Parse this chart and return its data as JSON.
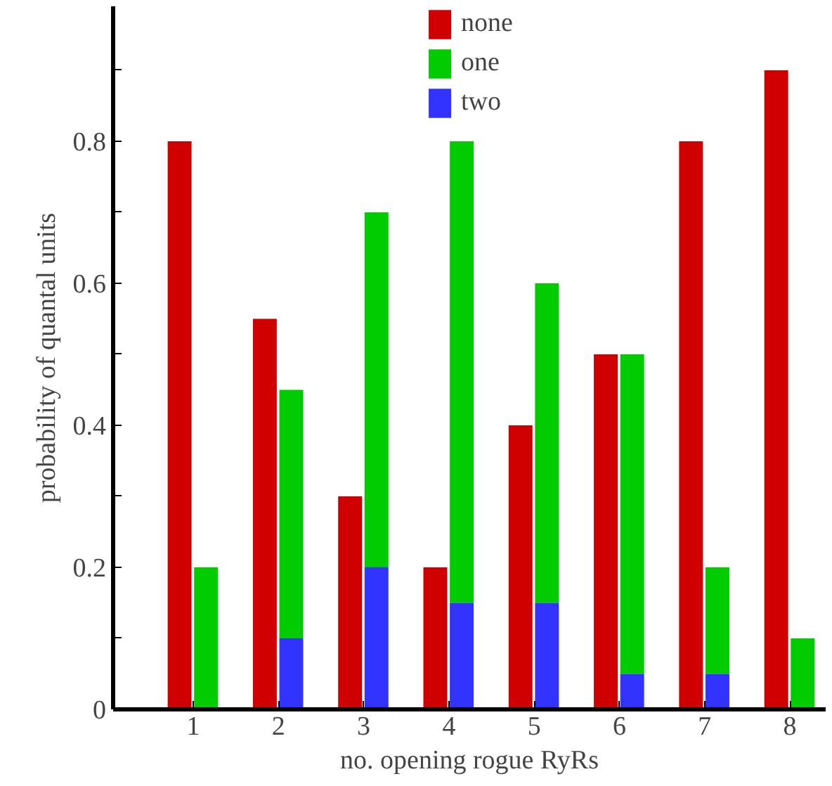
{
  "chart_data": {
    "type": "bar",
    "xlabel": "no. opening rogue RyRs",
    "ylabel": "probability of quantal units",
    "series": [
      {
        "name": "none",
        "color": "#d00000",
        "x": [
          0.84,
          1.84,
          2.84,
          3.84,
          4.84,
          5.84,
          6.84,
          7.84
        ],
        "values": [
          0.8,
          0.55,
          0.3,
          0.2,
          0.4,
          0.5,
          0.8,
          0.9
        ]
      },
      {
        "name": "one",
        "color": "#00cc00",
        "x": [
          1.15,
          2.15,
          3.15,
          4.15,
          5.15,
          6.15,
          7.15,
          8.15
        ],
        "values": [
          0.2,
          0.35,
          0.5,
          0.65,
          0.45,
          0.45,
          0.15,
          0.1
        ],
        "base": [
          0,
          0.1,
          0.2,
          0.15,
          0.15,
          0.05,
          0.05,
          0
        ]
      },
      {
        "name": "two",
        "color": "#3333ff",
        "x": [
          1.15,
          2.15,
          3.15,
          4.15,
          5.15,
          6.15,
          7.15,
          8.15
        ],
        "values": [
          0,
          0.1,
          0.2,
          0.15,
          0.15,
          0.05,
          0.05,
          0
        ]
      }
    ],
    "xlim": [
      0.06,
      8.42
    ],
    "xticks": [
      1,
      2,
      3,
      4,
      5,
      6,
      7,
      8
    ],
    "ylim": [
      0,
      0.99
    ],
    "yticks": [
      0,
      {
        "value": 0.1,
        "label": null
      },
      0.2,
      {
        "value": 0.3,
        "label": null
      },
      0.4,
      {
        "value": 0.5,
        "label": null
      },
      0.6,
      {
        "value": 0.7,
        "label": null
      },
      0.8,
      {
        "value": 0.9,
        "label": null
      }
    ],
    "grid": false,
    "legend": "top"
  }
}
